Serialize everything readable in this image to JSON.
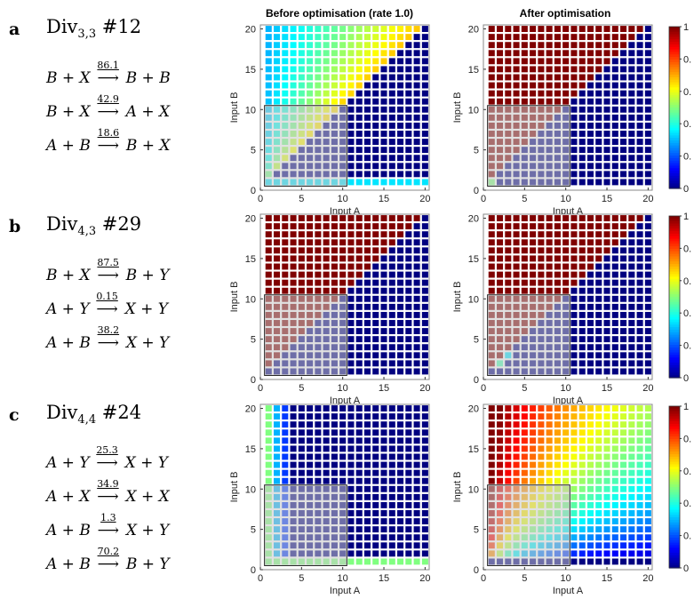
{
  "panel_titles": [
    "Before optimisation (rate 1.0)",
    "After optimisation"
  ],
  "rows": [
    {
      "letter": "a",
      "name_base": "Div",
      "name_sub": "3,3",
      "name_num": "#12",
      "reactions": [
        {
          "lhs": "B + X",
          "rate": "86.1",
          "rhs": "B + B"
        },
        {
          "lhs": "B + X",
          "rate": "42.9",
          "rhs": "A + X"
        },
        {
          "lhs": "A + B",
          "rate": "18.6",
          "rhs": "B + X"
        }
      ]
    },
    {
      "letter": "b",
      "name_base": "Div",
      "name_sub": "4,3",
      "name_num": "#29",
      "reactions": [
        {
          "lhs": "B + X",
          "rate": "87.5",
          "rhs": "B + Y"
        },
        {
          "lhs": "A + Y",
          "rate": "0.15",
          "rhs": "X + Y"
        },
        {
          "lhs": "A + B",
          "rate": "38.2",
          "rhs": "X + Y"
        }
      ]
    },
    {
      "letter": "c",
      "name_base": "Div",
      "name_sub": "4,4",
      "name_num": "#24",
      "reactions": [
        {
          "lhs": "A + Y",
          "rate": "25.3",
          "rhs": "X + Y"
        },
        {
          "lhs": "A + X",
          "rate": "34.9",
          "rhs": "X + X"
        },
        {
          "lhs": "A + B",
          "rate": "1.3",
          "rhs": "X + Y"
        },
        {
          "lhs": "A + B",
          "rate": "70.2",
          "rhs": "B + Y"
        }
      ]
    }
  ],
  "chart_data": [
    {
      "type": "heatmap",
      "row": "a",
      "panel": "before",
      "title": "Before optimisation (rate 1.0)",
      "xlabel": "Input A",
      "ylabel": "Input B",
      "x": [
        1,
        20
      ],
      "y": [
        1,
        20
      ],
      "xlim": [
        0,
        20.5
      ],
      "ylim": [
        0,
        20.5
      ],
      "xticks": [
        0,
        5,
        10,
        15,
        20
      ],
      "yticks": [
        0,
        5,
        10,
        15,
        20
      ],
      "clim": [
        0,
        1
      ],
      "training_region": {
        "x": [
          1,
          10
        ],
        "y": [
          1,
          10
        ]
      },
      "values_rule": "x<y: 0.25+0.45*x/y (0.3-0.7); x>=y: 0; y=1: 0.35",
      "colormap": "jet"
    },
    {
      "type": "heatmap",
      "row": "a",
      "panel": "after",
      "title": "After optimisation",
      "xlabel": "Input A",
      "ylabel": "Input B",
      "x": [
        1,
        20
      ],
      "y": [
        1,
        20
      ],
      "xlim": [
        0,
        20.5
      ],
      "ylim": [
        0,
        20.5
      ],
      "xticks": [
        0,
        5,
        10,
        15,
        20
      ],
      "yticks": [
        0,
        5,
        10,
        15,
        20
      ],
      "clim": [
        0,
        1
      ],
      "training_region": {
        "x": [
          1,
          10
        ],
        "y": [
          1,
          10
        ]
      },
      "values_rule": "x<y: 1.0; x>=y: 0; (1,1): 0.5",
      "colormap": "jet"
    },
    {
      "type": "heatmap",
      "row": "b",
      "panel": "before",
      "xlabel": "Input A",
      "ylabel": "Input B",
      "x": [
        1,
        20
      ],
      "y": [
        1,
        20
      ],
      "xlim": [
        0,
        20.5
      ],
      "ylim": [
        0,
        20.5
      ],
      "xticks": [
        0,
        5,
        10,
        15,
        20
      ],
      "yticks": [
        0,
        5,
        10,
        15,
        20
      ],
      "clim": [
        0,
        1
      ],
      "training_region": {
        "x": [
          1,
          10
        ],
        "y": [
          1,
          10
        ]
      },
      "values_rule": "x<y: 1.0; x>=y: 0",
      "colormap": "jet"
    },
    {
      "type": "heatmap",
      "row": "b",
      "panel": "after",
      "xlabel": "Input A",
      "ylabel": "Input B",
      "x": [
        1,
        20
      ],
      "y": [
        1,
        20
      ],
      "xlim": [
        0,
        20.5
      ],
      "ylim": [
        0,
        20.5
      ],
      "xticks": [
        0,
        5,
        10,
        15,
        20
      ],
      "yticks": [
        0,
        5,
        10,
        15,
        20
      ],
      "clim": [
        0,
        1
      ],
      "training_region": {
        "x": [
          1,
          10
        ],
        "y": [
          1,
          10
        ]
      },
      "values_rule": "x<y: 1.0; x>=y: 0; (2,2)-(3,3): 0.35-0.45",
      "colormap": "jet"
    },
    {
      "type": "heatmap",
      "row": "c",
      "panel": "before",
      "xlabel": "Input A",
      "ylabel": "Input B",
      "x": [
        1,
        20
      ],
      "y": [
        1,
        20
      ],
      "xlim": [
        0,
        20.5
      ],
      "ylim": [
        0,
        20.5
      ],
      "xticks": [
        0,
        5,
        10,
        15,
        20
      ],
      "yticks": [
        0,
        5,
        10,
        15,
        20
      ],
      "clim": [
        0,
        1
      ],
      "training_region": {
        "x": [
          1,
          10
        ],
        "y": [
          1,
          10
        ]
      },
      "values_rule": "x=1 or y=1: 0.5; x=2: 0.3; x=3: 0.2; otherwise 0",
      "colormap": "jet"
    },
    {
      "type": "heatmap",
      "row": "c",
      "panel": "after",
      "xlabel": "Input A",
      "ylabel": "Input B",
      "x": [
        1,
        20
      ],
      "y": [
        1,
        20
      ],
      "xlim": [
        0,
        20.5
      ],
      "ylim": [
        0,
        20.5
      ],
      "xticks": [
        0,
        5,
        10,
        15,
        20
      ],
      "yticks": [
        0,
        5,
        10,
        15,
        20
      ],
      "clim": [
        0,
        1
      ],
      "training_region": {
        "x": [
          1,
          10
        ],
        "y": [
          1,
          10
        ]
      },
      "values_rule": "approximately y/(x+y) with gradient; y=1: 0",
      "colormap": "jet"
    }
  ],
  "colorbar": {
    "ticks": [
      "0",
      "0.",
      "0.",
      "0.",
      "0.",
      "1"
    ]
  }
}
